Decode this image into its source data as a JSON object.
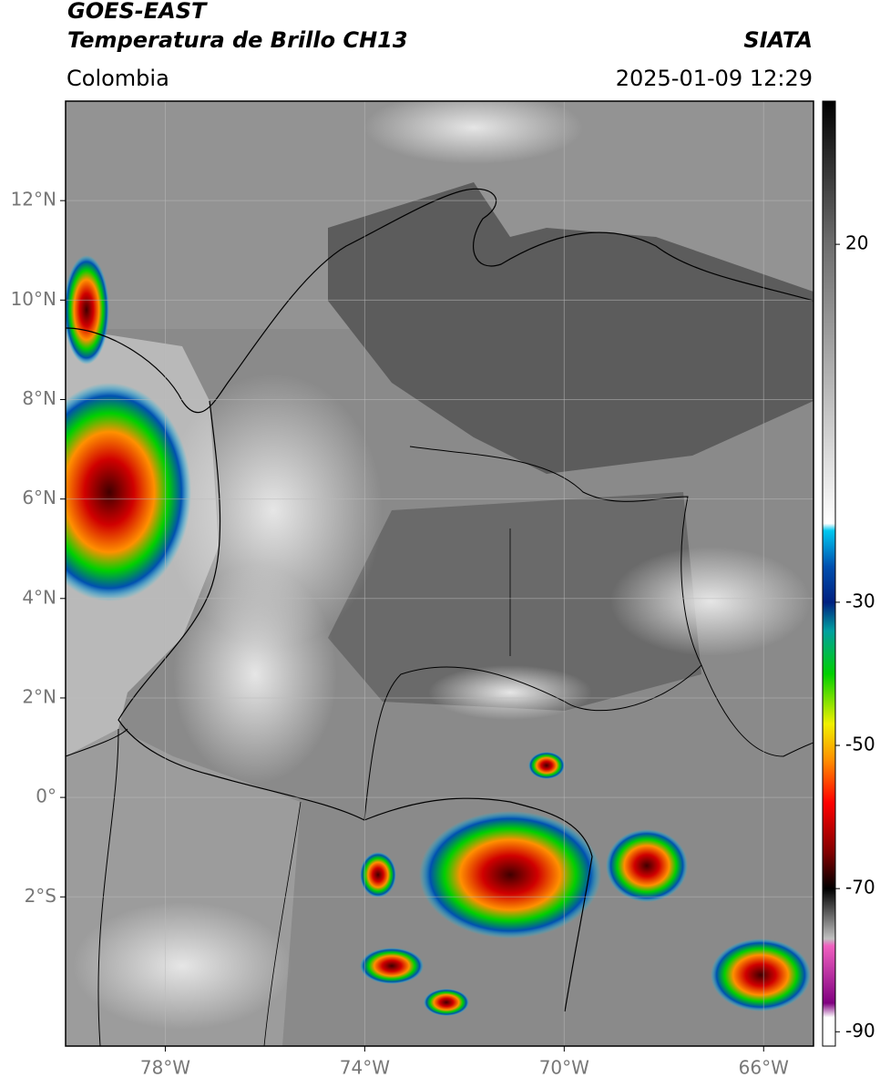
{
  "header": {
    "satellite": "GOES-EAST",
    "product": "Temperatura de Brillo CH13",
    "region": "Colombia",
    "source": "SIATA",
    "datetime": "2025-01-09 12:29"
  },
  "map": {
    "xlim": [
      -80,
      -65
    ],
    "ylim": [
      -5,
      14
    ],
    "xticks": [
      {
        "value": -78,
        "label": "78°W"
      },
      {
        "value": -74,
        "label": "74°W"
      },
      {
        "value": -70,
        "label": "70°W"
      },
      {
        "value": -66,
        "label": "66°W"
      }
    ],
    "yticks": [
      {
        "value": 12,
        "label": "12°N"
      },
      {
        "value": 10,
        "label": "10°N"
      },
      {
        "value": 8,
        "label": "8°N"
      },
      {
        "value": 6,
        "label": "6°N"
      },
      {
        "value": 4,
        "label": "4°N"
      },
      {
        "value": 2,
        "label": "2°N"
      },
      {
        "value": 0,
        "label": "0°"
      },
      {
        "value": -2,
        "label": "2°S"
      }
    ],
    "grid": true
  },
  "colorbar": {
    "range": [
      -92,
      40
    ],
    "ticks": [
      20,
      -30,
      -50,
      -70,
      -90
    ],
    "stops": [
      {
        "value": 40,
        "color": "#000000"
      },
      {
        "value": 20,
        "color": "#6e6e6e"
      },
      {
        "value": -19,
        "color": "#ffffff"
      },
      {
        "value": -20,
        "color": "#00c8f0"
      },
      {
        "value": -25,
        "color": "#0050b0"
      },
      {
        "value": -30,
        "color": "#002080"
      },
      {
        "value": -34,
        "color": "#00a0a0"
      },
      {
        "value": -40,
        "color": "#00d000"
      },
      {
        "value": -47,
        "color": "#f0f000"
      },
      {
        "value": -52,
        "color": "#ff9000"
      },
      {
        "value": -58,
        "color": "#ff0000"
      },
      {
        "value": -65,
        "color": "#800000"
      },
      {
        "value": -70,
        "color": "#000000"
      },
      {
        "value": -77,
        "color": "#c0c0c0"
      },
      {
        "value": -78,
        "color": "#f060c0"
      },
      {
        "value": -86,
        "color": "#800080"
      },
      {
        "value": -88,
        "color": "#ffffff"
      }
    ]
  }
}
